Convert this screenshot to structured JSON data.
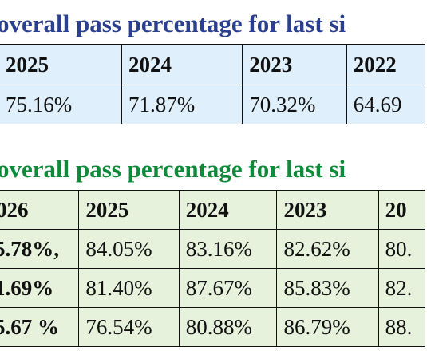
{
  "section1": {
    "title": "overall pass percentage for last si",
    "headers": [
      "2025",
      "2024",
      "2023",
      "2022"
    ],
    "values": [
      "75.16%",
      "71.87%",
      "70.32%",
      "64.69"
    ]
  },
  "section2": {
    "title": "overall pass percentage for last si",
    "headers": [
      "026",
      "2025",
      "2024",
      "2023",
      "20"
    ],
    "rows": [
      [
        "5.78%,",
        "84.05%",
        "83.16%",
        "82.62%",
        "80."
      ],
      [
        "1.69%",
        "81.40%",
        "87.67%",
        "85.83%",
        "82."
      ],
      [
        "5.67 %",
        "76.54%",
        "80.88%",
        "86.79%",
        "88."
      ]
    ]
  },
  "colors": {
    "title1": "#2b3f8f",
    "title2": "#0f8a3a",
    "table1_bg": "#dfeffb",
    "table2_bg": "#e6f2dc"
  }
}
